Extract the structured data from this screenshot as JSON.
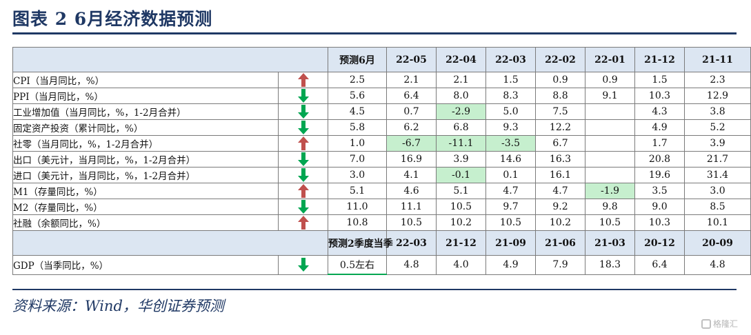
{
  "title": "图表 2   6月经济数据预测",
  "source": "资料来源：Wind，华创证券预测",
  "watermark": "格隆汇",
  "colors": {
    "up": "#c0504d",
    "down": "#00a651",
    "header_bg": "#dce6f2",
    "highlight": "#c6efce",
    "title": "#1f3864"
  },
  "monthly": {
    "forecast_header": "预测6月",
    "periods": [
      "22-05",
      "22-04",
      "22-03",
      "22-02",
      "22-01",
      "21-12",
      "21-11"
    ],
    "rows": [
      {
        "label": "CPI（当月同比，%）",
        "arrow": "up",
        "forecast": "2.5",
        "values": [
          "2.1",
          "2.1",
          "1.5",
          "0.9",
          "0.9",
          "1.5",
          "2.3"
        ],
        "highlight": []
      },
      {
        "label": "PPI（当月同比，%）",
        "arrow": "down",
        "forecast": "5.6",
        "values": [
          "6.4",
          "8.0",
          "8.3",
          "8.8",
          "9.1",
          "10.3",
          "12.9"
        ],
        "highlight": []
      },
      {
        "label": "工业增加值（当月同比，%，1-2月合并）",
        "arrow": "down",
        "forecast": "4.5",
        "values": [
          "0.7",
          "-2.9",
          "5.0",
          "7.5",
          "",
          "4.3",
          "3.8"
        ],
        "highlight": [
          1
        ]
      },
      {
        "label": "固定资产投资（累计同比，%）",
        "arrow": "down",
        "forecast": "5.8",
        "values": [
          "6.2",
          "6.8",
          "9.3",
          "12.2",
          "",
          "4.9",
          "5.2"
        ],
        "highlight": []
      },
      {
        "label": "社零（当月同比，%，1-2月合并）",
        "arrow": "up",
        "forecast": "1.0",
        "values": [
          "-6.7",
          "-11.1",
          "-3.5",
          "6.7",
          "",
          "1.7",
          "3.9"
        ],
        "highlight": [
          0,
          1,
          2
        ]
      },
      {
        "label": "出口（美元计，当月同比，%，1-2月合并）",
        "arrow": "down",
        "forecast": "7.0",
        "values": [
          "16.9",
          "3.9",
          "14.6",
          "16.3",
          "",
          "20.8",
          "21.7"
        ],
        "highlight": []
      },
      {
        "label": "进口（美元计，当月同比，%，1-2月合并）",
        "arrow": "down",
        "forecast": "3.0",
        "values": [
          "4.1",
          "-0.1",
          "0.1",
          "16.1",
          "",
          "19.6",
          "31.4"
        ],
        "highlight": [
          1
        ]
      },
      {
        "label": "M1（存量同比，%）",
        "arrow": "up",
        "forecast": "5.1",
        "values": [
          "4.6",
          "5.1",
          "4.7",
          "4.7",
          "-1.9",
          "3.5",
          "3.0"
        ],
        "highlight": [
          4
        ]
      },
      {
        "label": "M2（存量同比，%）",
        "arrow": "down",
        "forecast": "11.0",
        "values": [
          "11.1",
          "10.5",
          "9.7",
          "9.2",
          "9.8",
          "9.0",
          "8.5"
        ],
        "highlight": []
      },
      {
        "label": "社融（余额同比，%）",
        "arrow": "up",
        "forecast": "10.8",
        "values": [
          "10.5",
          "10.2",
          "10.5",
          "10.2",
          "10.5",
          "10.3",
          "10.1"
        ],
        "highlight": []
      }
    ]
  },
  "quarterly": {
    "forecast_header": "预测2季度当季",
    "periods": [
      "22-03",
      "21-12",
      "21-09",
      "21-06",
      "21-03",
      "20-12",
      "20-09"
    ],
    "rows": [
      {
        "label": "GDP（当季同比，%）",
        "arrow": "down",
        "forecast": "0.5左右",
        "values": [
          "4.8",
          "4.0",
          "4.9",
          "7.9",
          "18.3",
          "6.4",
          "4.8"
        ],
        "highlight": []
      }
    ]
  }
}
